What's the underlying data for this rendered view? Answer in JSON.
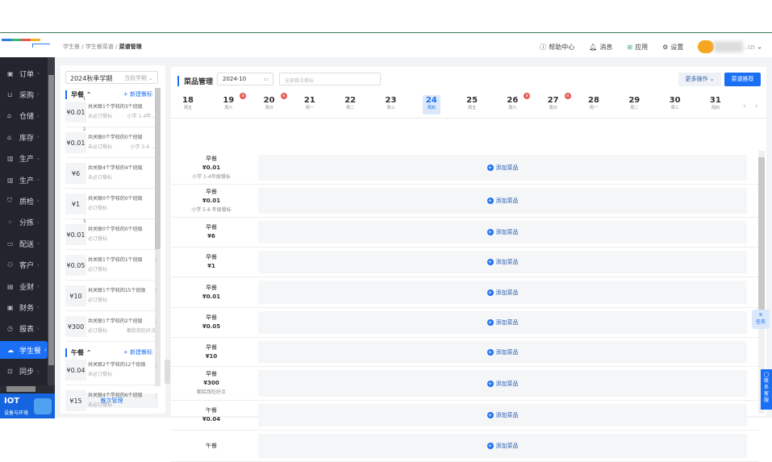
{
  "breadcrumb": [
    "学生餐",
    "学生餐菜谱",
    "菜谱管理"
  ],
  "header": {
    "help": "帮助中心",
    "messages": "消息",
    "apps": "应用",
    "settings": "设置",
    "user": "…(2)"
  },
  "sidebar": {
    "items": [
      {
        "label": "订单",
        "icon": "order-icon"
      },
      {
        "label": "采购",
        "icon": "purchase-icon"
      },
      {
        "label": "仓储",
        "icon": "warehouse-icon"
      },
      {
        "label": "库存",
        "icon": "inventory-icon"
      },
      {
        "label": "生产",
        "icon": "production-icon"
      },
      {
        "label": "生产",
        "icon": "production-icon"
      },
      {
        "label": "质检",
        "icon": "shield-icon"
      },
      {
        "label": "分拣",
        "icon": "sort-icon"
      },
      {
        "label": "配送",
        "icon": "truck-icon"
      },
      {
        "label": "客户",
        "icon": "customer-icon"
      },
      {
        "label": "业财",
        "icon": "chart-icon"
      },
      {
        "label": "财务",
        "icon": "finance-icon"
      },
      {
        "label": "报表",
        "icon": "clock-icon"
      },
      {
        "label": "学生餐",
        "icon": "cloud-icon",
        "active": true
      },
      {
        "label": "同步",
        "icon": "sync-icon"
      }
    ],
    "iot_title": "IOT",
    "iot_sub": "设备与环境"
  },
  "left": {
    "term": "2024秋季学期",
    "term_tag": "当前学期",
    "sections": [
      {
        "title": "早餐",
        "new": "+ 新建餐标",
        "cards": [
          {
            "no": "1",
            "price": "¥0.01",
            "desc": "共关联1个学校的3个班级",
            "status": "未必订餐标",
            "note": "小学 1-4年..."
          },
          {
            "no": "2",
            "price": "¥0.01",
            "desc": "共关联0个学校的0个班级",
            "status": "未必订餐标",
            "note": "小学 5-6 ..."
          },
          {
            "no": "",
            "price": "¥6",
            "desc": "共关联4个学校的4个班级",
            "status": "未必订餐标",
            "note": ""
          },
          {
            "no": "",
            "price": "¥1",
            "desc": "共关联0个学校的0个班级",
            "status": "必订餐标",
            "note": ""
          },
          {
            "no": "3",
            "price": "¥0.01",
            "desc": "共关联0个学校的0个班级",
            "status": "必订餐标",
            "note": ""
          },
          {
            "no": "",
            "price": "¥0.05",
            "desc": "共关联1个学校的1个班级",
            "status": "必订餐标",
            "note": ""
          },
          {
            "no": "",
            "price": "¥10",
            "desc": "共关联1个学校的15个班级",
            "status": "必订餐标",
            "note": ""
          },
          {
            "no": "",
            "price": "¥300",
            "desc": "共关联1个学校的2个班级",
            "status": "必订餐标",
            "note": "都给我吃好点"
          }
        ]
      },
      {
        "title": "午餐",
        "new": "+ 新建餐标",
        "cards": [
          {
            "no": "",
            "price": "¥0.04",
            "desc": "共关联2个学校的12个班级",
            "status": "未必订餐标",
            "note": ""
          },
          {
            "no": "",
            "price": "¥15",
            "desc": "共关联4个学校的6个班级",
            "status": "未必订餐标",
            "note": ""
          }
        ]
      }
    ],
    "manage": "餐次管理"
  },
  "main": {
    "title": "菜品管理",
    "month": "2024-10",
    "meal_placeholder": "全部餐次餐标",
    "more": "更多操作",
    "recommend": "菜谱推荐",
    "days": [
      {
        "d": "18",
        "w": "周五"
      },
      {
        "d": "19",
        "w": "周六",
        "badge": "休"
      },
      {
        "d": "20",
        "w": "周日",
        "badge": "休"
      },
      {
        "d": "21",
        "w": "周一"
      },
      {
        "d": "22",
        "w": "周二"
      },
      {
        "d": "23",
        "w": "周三"
      },
      {
        "d": "24",
        "w": "周四",
        "selected": true
      },
      {
        "d": "25",
        "w": "周五"
      },
      {
        "d": "26",
        "w": "周六",
        "badge": "休"
      },
      {
        "d": "27",
        "w": "周日",
        "badge": "休"
      },
      {
        "d": "28",
        "w": "周一"
      },
      {
        "d": "29",
        "w": "周二"
      },
      {
        "d": "30",
        "w": "周三"
      },
      {
        "d": "31",
        "w": "周四"
      }
    ],
    "add_label": "添加菜品",
    "rows": [
      {
        "meal": "早餐",
        "price": "¥0.01",
        "note": "小学 1-4年级餐标"
      },
      {
        "meal": "早餐",
        "price": "¥0.01",
        "note": "小学 5-6 年级餐标"
      },
      {
        "meal": "早餐",
        "price": "¥6",
        "note": ""
      },
      {
        "meal": "早餐",
        "price": "¥1",
        "note": ""
      },
      {
        "meal": "早餐",
        "price": "¥0.01",
        "note": ""
      },
      {
        "meal": "早餐",
        "price": "¥0.05",
        "note": ""
      },
      {
        "meal": "早餐",
        "price": "¥10",
        "note": ""
      },
      {
        "meal": "早餐",
        "price": "¥300",
        "note": "都给我吃好点"
      },
      {
        "meal": "午餐",
        "price": "¥0.04",
        "note": ""
      },
      {
        "meal": "午餐",
        "price": "",
        "note": ""
      }
    ]
  },
  "float": {
    "task": "任务",
    "contact": "联系客服"
  },
  "colors": {
    "accent": "#1a6ff5",
    "sidebar": "#23252e"
  }
}
